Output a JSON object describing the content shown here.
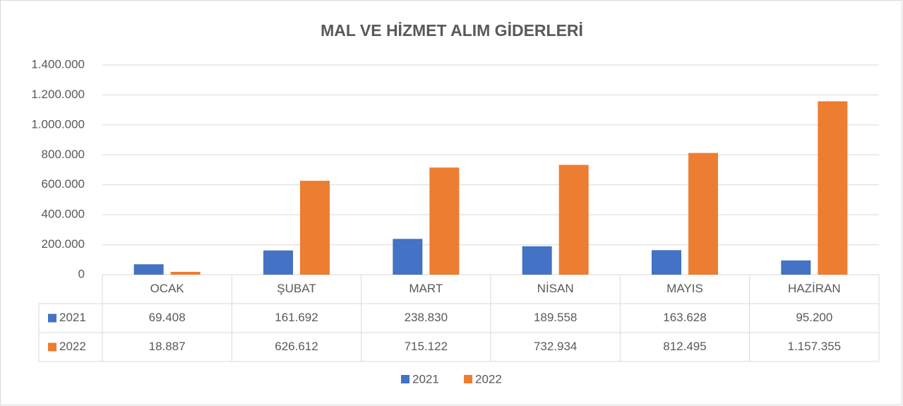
{
  "chart_data": {
    "type": "bar",
    "title": "MAL VE HİZMET ALIM GİDERLERİ",
    "categories": [
      "OCAK",
      "ŞUBAT",
      "MART",
      "NİSAN",
      "MAYIS",
      "HAZİRAN"
    ],
    "series": [
      {
        "name": "2021",
        "color": "#4472c4",
        "values": [
          69408,
          161692,
          238830,
          189558,
          163628,
          95200
        ],
        "value_labels": [
          "69.408",
          "161.692",
          "238.830",
          "189.558",
          "163.628",
          "95.200"
        ]
      },
      {
        "name": "2022",
        "color": "#ed7d31",
        "values": [
          18887,
          626612,
          715122,
          732934,
          812495,
          1157355
        ],
        "value_labels": [
          "18.887",
          "626.612",
          "715.122",
          "732.934",
          "812.495",
          "1.157.355"
        ]
      }
    ],
    "ylim": [
      0,
      1400000
    ],
    "yticks": [
      0,
      {
        "value": 200000,
        "label": "200.000"
      },
      {
        "value": 400000,
        "label": "400.000"
      },
      {
        "value": 600000,
        "label": "600.000"
      },
      {
        "value": 800000,
        "label": "800.000"
      },
      {
        "value": 1000000,
        "label": "1.000.000"
      },
      {
        "value": 1200000,
        "label": "1.200.000"
      },
      {
        "value": 1400000,
        "label": "1.400.000"
      }
    ],
    "grid": true,
    "legend": "bottom"
  }
}
